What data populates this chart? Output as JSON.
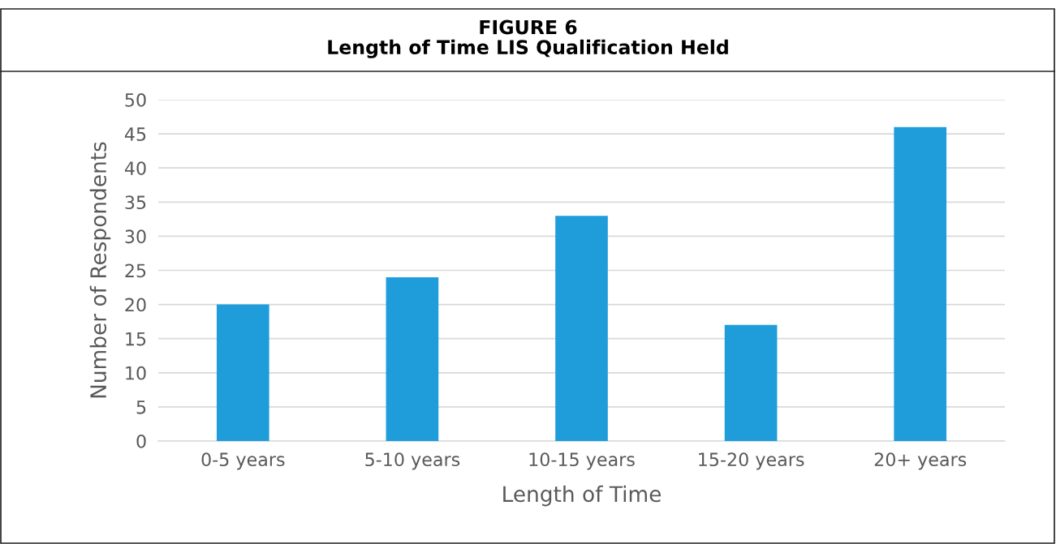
{
  "chart_data": {
    "type": "bar",
    "title": "FIGURE 6\nLength of Time LIS Qualification Held",
    "xlabel": "Length of Time",
    "ylabel": "Number of Respondents",
    "categories": [
      "0-5 years",
      "5-10 years",
      "10-15 years",
      "15-20 years",
      "20+ years"
    ],
    "values": [
      20,
      24,
      33,
      17,
      46
    ],
    "color": "#1f9ddb",
    "ylim": [
      0,
      50
    ],
    "yticks": [
      0,
      5,
      10,
      15,
      20,
      25,
      30,
      35,
      40,
      45,
      50
    ],
    "grid": "y",
    "legend": false
  }
}
